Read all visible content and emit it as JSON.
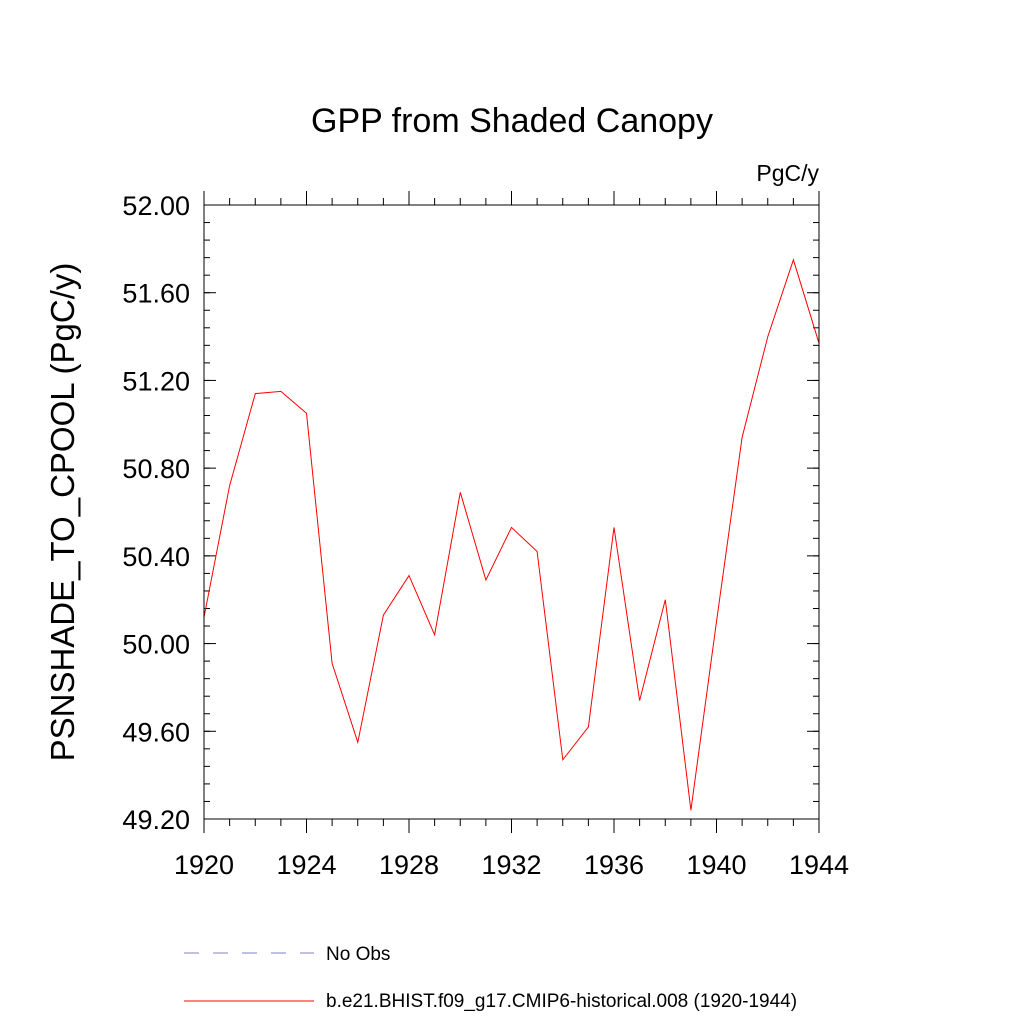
{
  "chart_data": {
    "type": "line",
    "title": "GPP from Shaded Canopy",
    "units": "PgC/y",
    "ylabel": "PSNSHADE_TO_CPOOL  (PgC/y)",
    "xlabel": "",
    "xlim": [
      1920,
      1944
    ],
    "ylim": [
      49.2,
      52.0
    ],
    "x_ticks": [
      1920,
      1924,
      1928,
      1932,
      1936,
      1940,
      1944
    ],
    "x_tick_labels": [
      "1920",
      "1924",
      "1928",
      "1932",
      "1936",
      "1940",
      "1944"
    ],
    "y_ticks": [
      49.2,
      49.6,
      50.0,
      50.4,
      50.8,
      51.2,
      51.6,
      52.0
    ],
    "y_tick_labels": [
      "49.20",
      "49.60",
      "50.00",
      "50.40",
      "50.80",
      "51.20",
      "51.60",
      "52.00"
    ],
    "grid": false,
    "legend_position": "bottom",
    "series": [
      {
        "name": "b.e21.BHIST.f09_g17.CMIP6-historical.008 (1920-1944)",
        "color": "#ff0000",
        "style": "solid",
        "x": [
          1920,
          1921,
          1922,
          1923,
          1924,
          1925,
          1926,
          1927,
          1928,
          1929,
          1930,
          1931,
          1932,
          1933,
          1934,
          1935,
          1936,
          1937,
          1938,
          1939,
          1940,
          1941,
          1942,
          1943,
          1944
        ],
        "y": [
          50.12,
          50.72,
          51.14,
          51.15,
          51.05,
          49.91,
          49.55,
          50.13,
          50.31,
          50.04,
          50.69,
          50.29,
          50.53,
          50.42,
          49.47,
          49.62,
          50.53,
          49.74,
          50.2,
          49.24,
          50.1,
          50.94,
          51.4,
          51.75,
          51.37
        ]
      }
    ],
    "legend": [
      {
        "label": "No Obs",
        "color": "#8080c0",
        "style": "dashed"
      },
      {
        "label": "b.e21.BHIST.f09_g17.CMIP6-historical.008 (1920-1944)",
        "color": "#ff0000",
        "style": "solid"
      }
    ]
  }
}
